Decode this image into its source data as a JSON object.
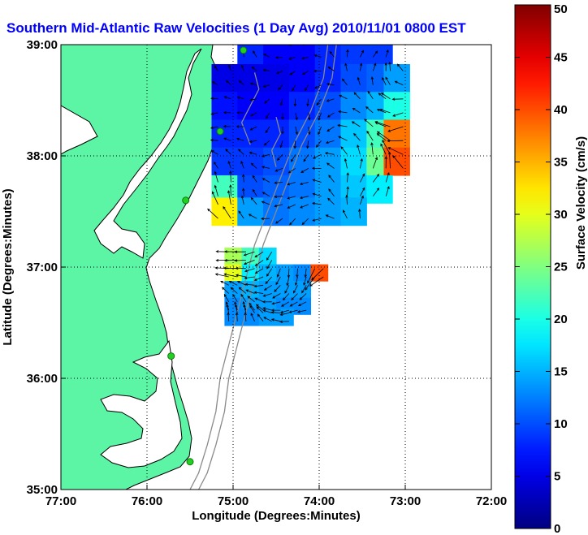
{
  "chart_data": {
    "type": "heatmap",
    "title": "Southern Mid-Atlantic Raw Velocities (1 Day Avg) 2010/11/01 0800 EST",
    "xlabel": "Longitude (Degrees:Minutes)",
    "ylabel": "Latitude (Degrees:Minutes)",
    "x_ticks": [
      "77:00",
      "76:00",
      "75:00",
      "74:00",
      "73:00",
      "72:00"
    ],
    "y_ticks": [
      "39:00",
      "38:00",
      "37:00",
      "36:00",
      "35:00"
    ],
    "x_range": [
      -77,
      -72
    ],
    "y_range": [
      35,
      39
    ],
    "grid": true,
    "colorbar": {
      "label": "Surface Velocity (cm/s)",
      "range": [
        0,
        50
      ],
      "ticks": [
        "0",
        "5",
        "10",
        "15",
        "20",
        "25",
        "30",
        "35",
        "40",
        "45",
        "50"
      ]
    },
    "colors": {
      "land": "#5cf5a5",
      "coastline": "#000000",
      "bathymetry": "#8a8a8a",
      "stations": "#22d022",
      "title": "#0000ff"
    },
    "stations": [
      {
        "lon": -74.88,
        "lat": 38.95
      },
      {
        "lon": -75.15,
        "lat": 38.22
      },
      {
        "lon": -75.55,
        "lat": 37.6
      },
      {
        "lon": -75.72,
        "lat": 36.2
      },
      {
        "lon": -75.5,
        "lat": 35.25
      }
    ],
    "northern_region_velocity_grid": {
      "lon": [
        -75.1,
        -74.8,
        -74.5,
        -74.2,
        -73.9,
        -73.6,
        -73.3,
        -73.1
      ],
      "lat": [
        38.95,
        38.7,
        38.45,
        38.2,
        37.95,
        37.7,
        37.5
      ],
      "speed_cm_s": [
        [
          null,
          8,
          6,
          6,
          8,
          9,
          9,
          null
        ],
        [
          5,
          5,
          5,
          6,
          8,
          10,
          11,
          14
        ],
        [
          7,
          6,
          6,
          8,
          10,
          13,
          15,
          20
        ],
        [
          8,
          8,
          8,
          10,
          12,
          16,
          22,
          38
        ],
        [
          9,
          9,
          10,
          12,
          14,
          17,
          24,
          40
        ],
        [
          22,
          10,
          11,
          12,
          14,
          16,
          18,
          null
        ],
        [
          32,
          14,
          12,
          13,
          14,
          15,
          null,
          null
        ]
      ]
    },
    "southern_region_velocity_grid": {
      "lon": [
        -75.0,
        -74.8,
        -74.6,
        -74.4,
        -74.2,
        -74.0
      ],
      "lat": [
        37.1,
        36.95,
        36.8,
        36.65,
        36.55
      ],
      "speed_cm_s": [
        [
          27,
          22,
          17,
          null,
          null,
          null
        ],
        [
          30,
          18,
          15,
          14,
          13,
          40
        ],
        [
          14,
          15,
          14,
          14,
          14,
          null
        ],
        [
          13,
          14,
          14,
          13,
          13,
          null
        ],
        [
          13,
          13,
          14,
          14,
          null,
          null
        ]
      ]
    }
  }
}
